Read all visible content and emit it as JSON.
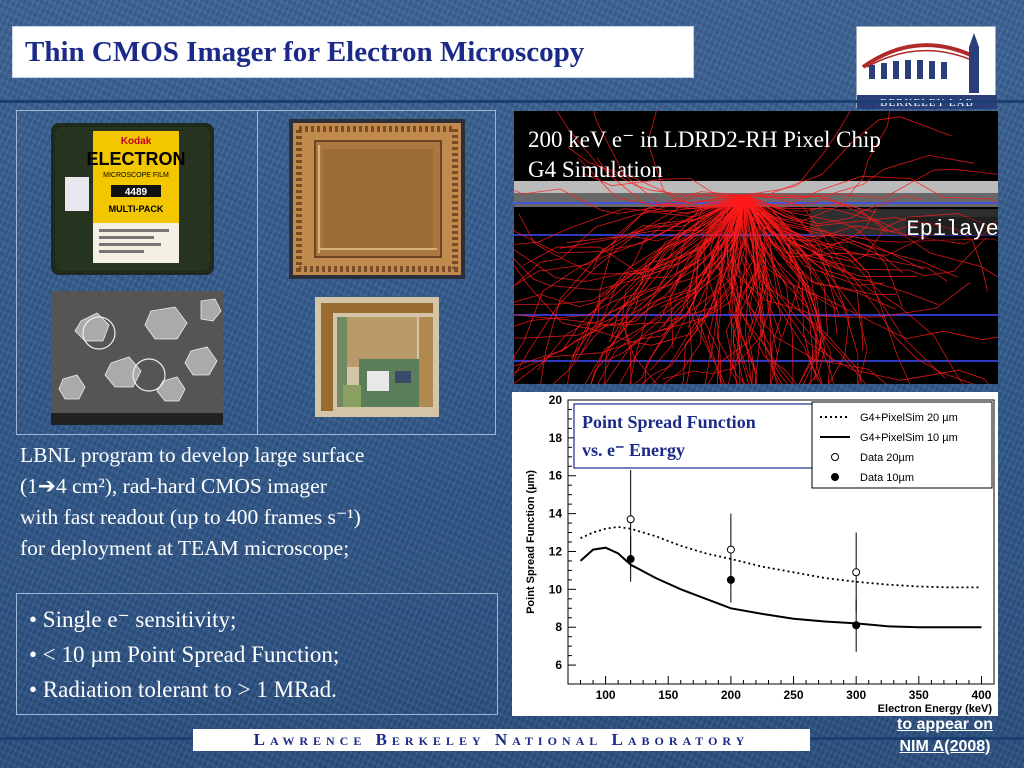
{
  "slide": {
    "title": "Thin CMOS Imager for Electron Microscopy",
    "logo_text": "BERKELEY LAB",
    "film_box": {
      "brand": "Kodak",
      "product": "ELECTRON",
      "line": "MICROSCOPE FILM",
      "code": "4489",
      "pack": "MULTI-PACK"
    },
    "description": {
      "line1": "LBNL program to develop large surface",
      "line2": "(1➔4 cm²), rad-hard CMOS imager",
      "line3": "with fast readout (up to 400 frames s⁻¹)",
      "line4": "for deployment at TEAM microscope;"
    },
    "bullets": [
      "• Single e⁻ sensitivity;",
      "• < 10 µm Point Spread Function;",
      "• Radiation tolerant to > 1 MRad."
    ],
    "footer": "Lawrence Berkeley National Laboratory",
    "note_line1": "to appear on",
    "note_line2": "NIM A(2008)"
  },
  "simulation": {
    "title_line1": "200 keV e⁻ in LDRD2-RH Pixel Chip",
    "title_line2": "G4 Simulation",
    "layer_label": "Epilayer",
    "track_color": "#ff1a1a"
  },
  "chart_data": {
    "type": "line",
    "title": "Point Spread Function vs. e⁻ Energy",
    "xlabel": "Electron Energy (keV)",
    "ylabel": "Point Spread Function (µm)",
    "xlim": [
      70,
      410
    ],
    "ylim": [
      5,
      20
    ],
    "xticks": [
      100,
      150,
      200,
      250,
      300,
      350,
      400
    ],
    "yticks": [
      6,
      8,
      10,
      12,
      14,
      16,
      18,
      20
    ],
    "grid": false,
    "legend_position": "top-right",
    "series": [
      {
        "name": "G4+PixelSim 20 µm",
        "style": "dotted",
        "x": [
          80,
          90,
          100,
          110,
          120,
          140,
          160,
          180,
          200,
          225,
          250,
          275,
          300,
          325,
          350,
          375,
          400
        ],
        "y": [
          12.7,
          13.0,
          13.2,
          13.3,
          13.2,
          12.8,
          12.3,
          11.9,
          11.6,
          11.2,
          10.9,
          10.6,
          10.4,
          10.25,
          10.15,
          10.1,
          10.1
        ]
      },
      {
        "name": "G4+PixelSim 10 µm",
        "style": "solid",
        "x": [
          80,
          90,
          100,
          110,
          120,
          140,
          160,
          180,
          200,
          225,
          250,
          275,
          300,
          325,
          350,
          375,
          400
        ],
        "y": [
          11.5,
          12.1,
          12.2,
          11.9,
          11.3,
          10.6,
          10.0,
          9.5,
          9.0,
          8.7,
          8.45,
          8.3,
          8.2,
          8.05,
          8.0,
          8.0,
          8.0
        ]
      },
      {
        "name": "Data 20µm",
        "style": "open-circle",
        "x": [
          120,
          200,
          300
        ],
        "y": [
          13.7,
          12.1,
          10.9
        ],
        "err": [
          2.6,
          1.9,
          2.1
        ]
      },
      {
        "name": "Data 10µm",
        "style": "filled-circle",
        "x": [
          120,
          200,
          300
        ],
        "y": [
          11.6,
          10.5,
          8.1
        ],
        "err": [
          1.2,
          1.2,
          1.4
        ]
      }
    ]
  }
}
